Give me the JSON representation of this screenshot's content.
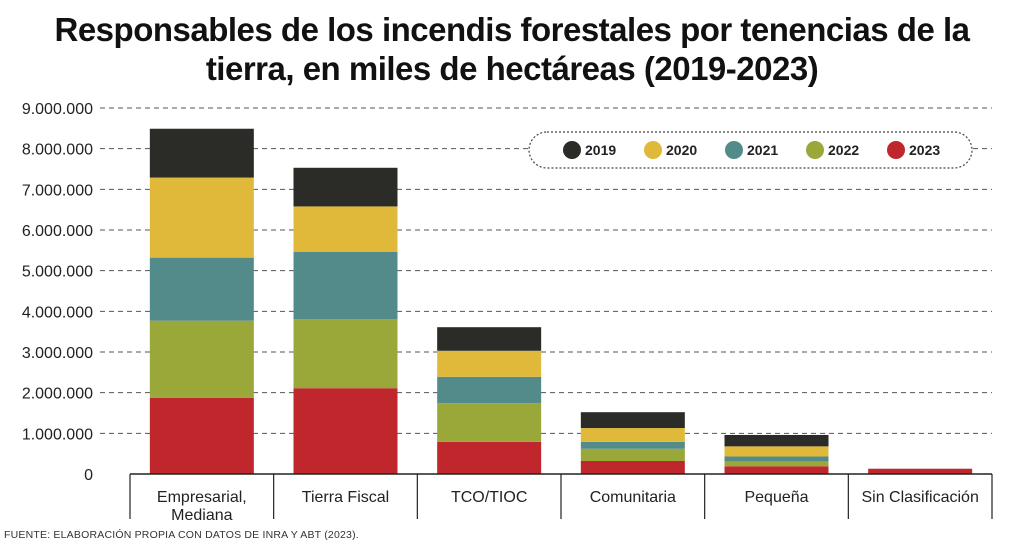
{
  "chart_data": {
    "type": "bar",
    "stacked": true,
    "title_lines": [
      "Responsables de los incendis forestales por tenencias de la",
      "tierra, en miles de hectáreas (2019-2023)"
    ],
    "categories": [
      [
        "Empresarial,",
        "Mediana"
      ],
      [
        "Tierra Fiscal"
      ],
      [
        "TCO/TIOC"
      ],
      [
        "Comunitaria"
      ],
      [
        "Pequeña"
      ],
      [
        "Sin Clasificación"
      ]
    ],
    "series": [
      {
        "name": "2023",
        "color": "#c0272d",
        "values": [
          1870000,
          2110000,
          790000,
          320000,
          190000,
          130000
        ]
      },
      {
        "name": "2022",
        "color": "#9aa83a",
        "values": [
          1900000,
          1700000,
          950000,
          300000,
          120000,
          0
        ]
      },
      {
        "name": "2021",
        "color": "#538b8a",
        "values": [
          1550000,
          1650000,
          650000,
          170000,
          120000,
          0
        ]
      },
      {
        "name": "2020",
        "color": "#e0b83a",
        "values": [
          1970000,
          1120000,
          640000,
          340000,
          250000,
          0
        ]
      },
      {
        "name": "2019",
        "color": "#2b2b28",
        "values": [
          1200000,
          950000,
          580000,
          390000,
          280000,
          0
        ]
      }
    ],
    "legend_order": [
      "2019",
      "2020",
      "2021",
      "2022",
      "2023"
    ],
    "y_ticks": [
      "0",
      "1.000.000",
      "2.000.000",
      "3.000.000",
      "4.000.000",
      "5.000.000",
      "6.000.000",
      "7.000.000",
      "8.000.000",
      "9.000.000"
    ],
    "ylim": [
      0,
      9000000
    ],
    "grid": "horizontal-dashed",
    "legend_position": "top-right"
  },
  "source": "FUENTE: ELABORACIÓN PROPIA CON DATOS DE INRA Y ABT (2023)."
}
